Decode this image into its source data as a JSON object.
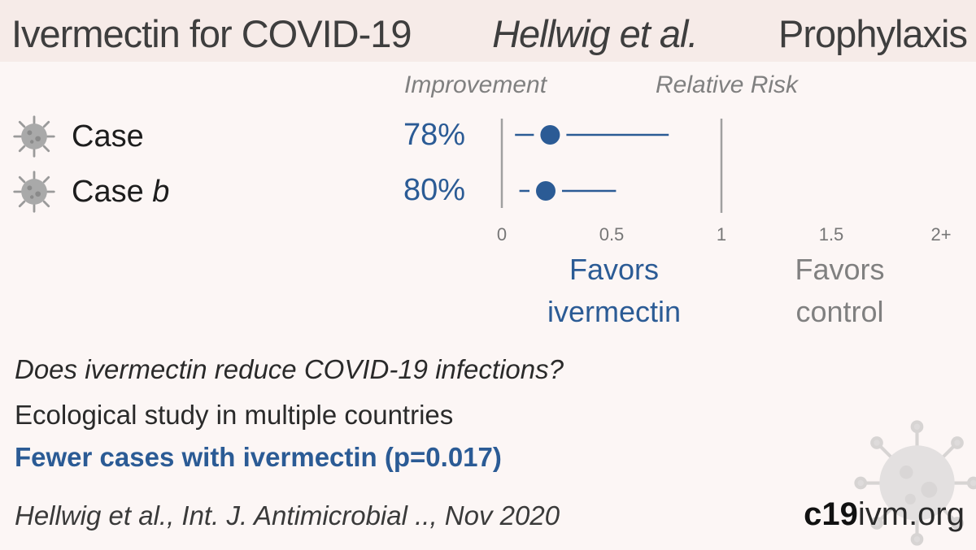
{
  "header": {
    "title_drug": "Ivermectin for COVID-19",
    "title_author": "Hellwig et al.",
    "title_type": "Prophylaxis"
  },
  "columns": {
    "improvement": "Improvement",
    "relative_risk": "Relative Risk"
  },
  "chart_data": {
    "type": "forest",
    "xlim": [
      0,
      2
    ],
    "reference_line": 1,
    "tick_labels": [
      "0",
      "0.5",
      "1",
      "1.5",
      "2+"
    ],
    "tick_values": [
      0,
      0.5,
      1,
      1.5,
      2
    ],
    "rows": [
      {
        "outcome": "Case",
        "outcome_suffix": "",
        "improvement": "78%",
        "rr": 0.22,
        "ci_low": 0.06,
        "ci_high": 0.76
      },
      {
        "outcome": "Case",
        "outcome_suffix": "b",
        "improvement": "80%",
        "rr": 0.2,
        "ci_low": 0.08,
        "ci_high": 0.52
      }
    ],
    "favors_left": [
      "Favors",
      "ivermectin"
    ],
    "favors_right": [
      "Favors",
      "control"
    ]
  },
  "notes": {
    "question": "Does ivermectin reduce COVID-19 infections?",
    "design": "Ecological study in multiple countries",
    "result": "Fewer cases with ivermectin (p=0.017)"
  },
  "citation": "Hellwig et al., Int. J. Antimicrobial .., Nov 2020",
  "site": {
    "bold": "c19",
    "rest": "ivm.org"
  },
  "colors": {
    "accent": "#2b5b95",
    "muted": "#808080",
    "background": "#fcf6f5",
    "header_band": "#f6ebe8"
  },
  "icons": {
    "outcome": "virus-icon",
    "background": "virus-icon"
  }
}
